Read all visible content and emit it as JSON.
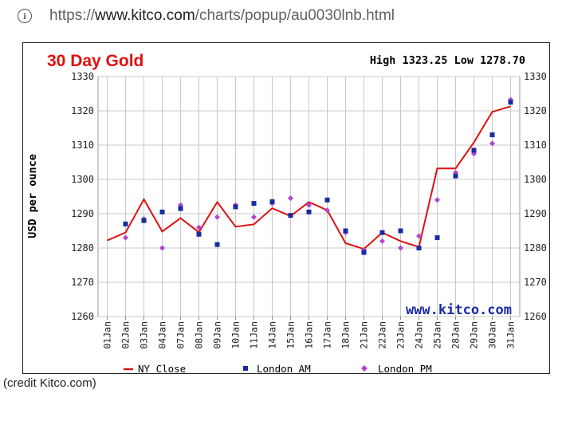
{
  "browser": {
    "url_prefix": "https://",
    "url_domain": "www.kitco.com",
    "url_path": "/charts/popup/au0030lnb.html",
    "info_icon": "info-icon"
  },
  "chart_data": {
    "type": "line",
    "title": "30 Day Gold",
    "high_low": "High 1323.25 Low 1278.70",
    "ylabel": "USD per ounce",
    "xlabel": "",
    "watermark": "www.kitco.com",
    "ylim": [
      1260,
      1330
    ],
    "yticks": [
      1260,
      1270,
      1280,
      1290,
      1300,
      1310,
      1320,
      1330
    ],
    "grid": true,
    "legend_position": "bottom",
    "categories": [
      "01Jan",
      "02Jan",
      "03Jan",
      "04Jan",
      "07Jan",
      "08Jan",
      "09Jan",
      "10Jan",
      "11Jan",
      "14Jan",
      "15Jan",
      "16Jan",
      "17Jan",
      "18Jan",
      "21Jan",
      "22Jan",
      "23Jan",
      "24Jan",
      "25Jan",
      "28Jan",
      "29Jan",
      "30Jan",
      "31Jan"
    ],
    "series": [
      {
        "name": "NY Close",
        "marker": "line",
        "color": "#dd1111",
        "values": [
          1282.2,
          1284.5,
          1294.2,
          1284.8,
          1288.7,
          1284.6,
          1293.4,
          1286.2,
          1286.9,
          1291.6,
          1289.3,
          1293.4,
          1291.0,
          1281.4,
          1279.7,
          1284.5,
          1282.0,
          1280.3,
          1303.2,
          1303.2,
          1310.8,
          1319.7,
          1321.3
        ]
      },
      {
        "name": "London AM",
        "marker": "square",
        "color": "#1a2aa0",
        "values": [
          null,
          1287.0,
          1288.0,
          1290.5,
          1291.5,
          1284.0,
          1281.0,
          1292.0,
          1293.0,
          1293.5,
          1289.5,
          1290.5,
          1294.0,
          1285.0,
          1278.7,
          1284.5,
          1285.0,
          1280.0,
          1283.0,
          1301.0,
          1308.5,
          1313.0,
          1322.5
        ]
      },
      {
        "name": "London PM",
        "marker": "diamond",
        "color": "#b045d0",
        "values": [
          null,
          1283.0,
          1288.5,
          1280.0,
          1292.5,
          1286.0,
          1289.0,
          1292.5,
          1289.0,
          1293.0,
          1294.5,
          1292.5,
          1291.0,
          1284.5,
          1279.5,
          1282.0,
          1280.0,
          1283.5,
          1294.0,
          1302.0,
          1307.5,
          1310.5,
          1323.25
        ]
      }
    ]
  },
  "footer": {
    "credit": "(credit Kitco.com)"
  }
}
